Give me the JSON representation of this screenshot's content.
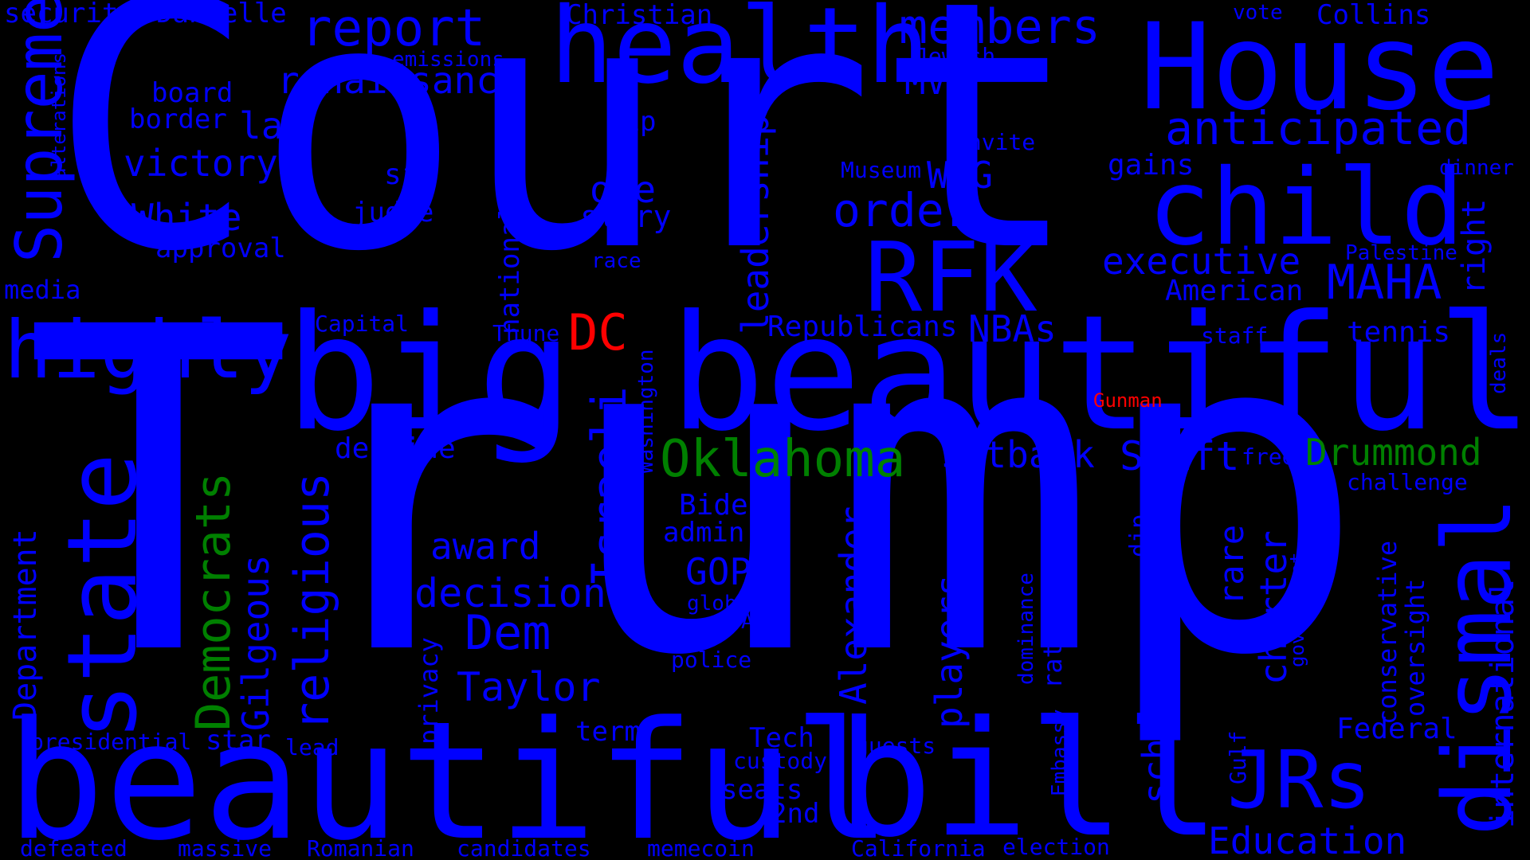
{
  "colors": {
    "background": "#000000",
    "primary": "#0000FF",
    "green": "#008000",
    "red": "#FF0000"
  },
  "words": [
    "Trump",
    "Court",
    "beautiful",
    "big",
    "beautiful",
    "bill",
    "House",
    "health",
    "child",
    "RFK",
    "state",
    "highly",
    "Supreme",
    "dismal",
    "JRs",
    "Oklahoma",
    "report",
    "members",
    "anticipated",
    "Israeli",
    "religious",
    "Democrats",
    "Dem",
    "Taylor",
    "Swift",
    "Drummond",
    "MAHA",
    "order",
    "executive",
    "schools",
    "charter",
    "international",
    "renaissance",
    "victory",
    "White",
    "lap",
    "leadership",
    "nationalists",
    "decision",
    "GOP",
    "award",
    "Alexander",
    "Gilgeous",
    "Department",
    "Education",
    "players",
    "setback",
    "decline",
    "NBAs",
    "one",
    "story",
    "MVP",
    "Tip",
    "WAG",
    "American",
    "right",
    "rare",
    "conservative",
    "oversight",
    "Federal",
    "tennis",
    "DC",
    "Gunman",
    "security",
    "Danielle",
    "Christian",
    "emissions",
    "Jewish",
    "vote",
    "Collins",
    "alterations",
    "board",
    "border",
    "sin",
    "judge",
    "invite",
    "Museum",
    "gains",
    "dinner",
    "approval",
    "race",
    "Palestine",
    "media",
    "Capital",
    "Thune",
    "Washington",
    "Republicans",
    "staff",
    "deals",
    "free",
    "challenge",
    "Biden",
    "admin",
    "dip",
    "government",
    "global",
    "AI",
    "apps",
    "police",
    "privacy",
    "dominance",
    "ratings",
    "Embassy",
    "Gulf",
    "presidential",
    "star",
    "lead",
    "term",
    "Tech",
    "custody",
    "guests",
    "seats",
    "2nd",
    "defeated",
    "massive",
    "Romanian",
    "candidates",
    "memecoin",
    "California",
    "election"
  ]
}
